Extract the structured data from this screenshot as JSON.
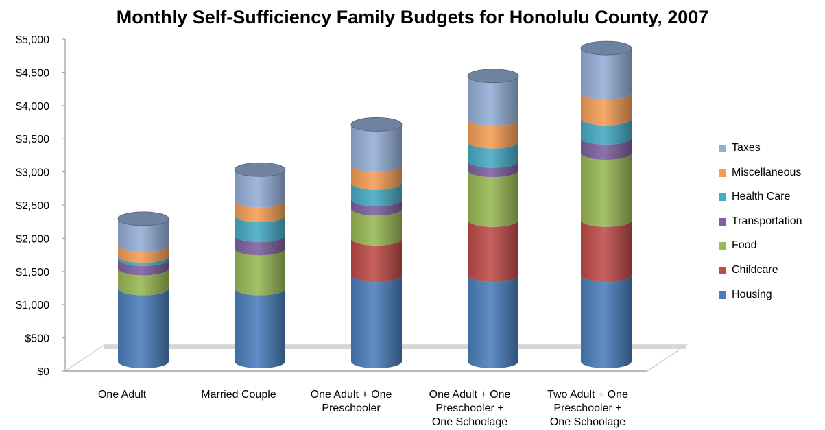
{
  "chart_data": {
    "type": "bar",
    "stacked": true,
    "style": "3d-cylinder",
    "title": "Monthly Self-Sufficiency Family Budgets for Honolulu County, 2007",
    "xlabel": "",
    "ylabel": "",
    "ylim": [
      0,
      5000
    ],
    "ytick_labels": [
      "$0",
      "$500",
      "$1,000",
      "$1,500",
      "$2,000",
      "$2,500",
      "$3,000",
      "$3,500",
      "$4,000",
      "$4,500",
      "$5,000"
    ],
    "categories": [
      [
        "One Adult"
      ],
      [
        "Married Couple"
      ],
      [
        "One Adult + One",
        "Preschooler"
      ],
      [
        "One Adult + One",
        "Preschooler +",
        "One Schoolage"
      ],
      [
        "Two Adult + One",
        "Preschooler +",
        "One Schoolage"
      ]
    ],
    "series": [
      {
        "name": "Housing",
        "color": "#4a7ebb",
        "values": [
          1100,
          1100,
          1300,
          1300,
          1300
        ]
      },
      {
        "name": "Childcare",
        "color": "#be4b48",
        "values": [
          0,
          0,
          550,
          830,
          830
        ]
      },
      {
        "name": "Food",
        "color": "#98b954",
        "values": [
          300,
          600,
          450,
          750,
          1010
        ]
      },
      {
        "name": "Transportation",
        "color": "#7d60a0",
        "values": [
          140,
          200,
          140,
          140,
          230
        ]
      },
      {
        "name": "Health Care",
        "color": "#46aac5",
        "values": [
          50,
          300,
          250,
          290,
          290
        ]
      },
      {
        "name": "Miscellaneous",
        "color": "#f59d56",
        "values": [
          160,
          220,
          270,
          340,
          390
        ]
      },
      {
        "name": "Taxes",
        "color": "#94aed7",
        "values": [
          400,
          470,
          610,
          650,
          670
        ]
      }
    ],
    "grid": false,
    "legend_position": "right"
  }
}
